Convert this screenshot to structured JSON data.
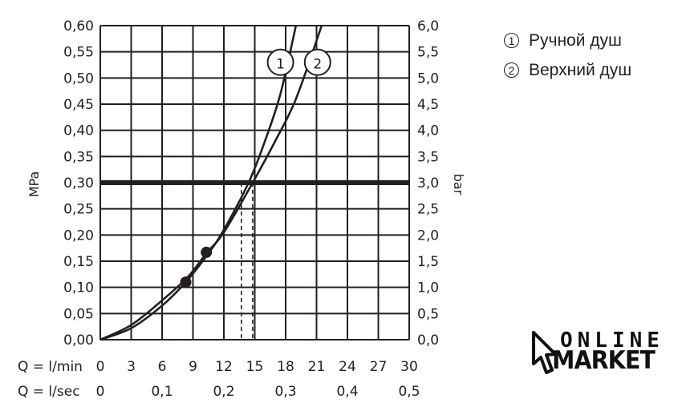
{
  "chart_data": {
    "type": "line",
    "ylabel_left": "MPa",
    "ylabel_right": "bar",
    "x_row_labels": [
      "Q = l/min",
      "Q = l/sec"
    ],
    "x_ticks_lmin": [
      "0",
      "3",
      "6",
      "9",
      "12",
      "15",
      "18",
      "21",
      "24",
      "27",
      "30"
    ],
    "x_ticks_lsec": [
      "0",
      "0,1",
      "0,2",
      "0,3",
      "0,4",
      "0,5"
    ],
    "y_ticks_left": [
      "0,00",
      "0,05",
      "0,10",
      "0,15",
      "0,20",
      "0,25",
      "0,30",
      "0,35",
      "0,40",
      "0,45",
      "0,50",
      "0,55",
      "0,60"
    ],
    "y_ticks_right": [
      "0,0",
      "0,5",
      "1,0",
      "1,5",
      "2,0",
      "2,5",
      "3,0",
      "3,5",
      "4,0",
      "4,5",
      "5,0",
      "5,5",
      "6,0"
    ],
    "xlim": [
      0,
      30
    ],
    "ylim": [
      0,
      0.6
    ],
    "grid": true,
    "reference_line": {
      "y": 0.3
    },
    "series": [
      {
        "name": "1",
        "x": [
          0,
          3,
          6,
          8.3,
          10.5,
          12,
          14.4,
          16,
          17.5,
          19
        ],
        "y": [
          0,
          0.022,
          0.065,
          0.11,
          0.165,
          0.21,
          0.3,
          0.38,
          0.47,
          0.6
        ],
        "marker": {
          "x": 8.3,
          "y": 0.11
        },
        "drop_x": 13.7
      },
      {
        "name": "2",
        "x": [
          0,
          3,
          6,
          8.5,
          10.3,
          12,
          14.8,
          17,
          19,
          21.5
        ],
        "y": [
          0,
          0.028,
          0.075,
          0.12,
          0.165,
          0.205,
          0.3,
          0.38,
          0.46,
          0.6
        ],
        "marker": {
          "x": 10.3,
          "y": 0.167
        },
        "drop_x": 14.8
      }
    ],
    "curve_labels": [
      "1",
      "2"
    ]
  },
  "legend": {
    "items": [
      {
        "num": "1",
        "label": "Ручной душ"
      },
      {
        "num": "2",
        "label": "Верхний душ"
      }
    ]
  },
  "logo": {
    "top": "ONLINE",
    "bottom": "MARKET"
  },
  "colors": {
    "ink": "#231f20"
  }
}
